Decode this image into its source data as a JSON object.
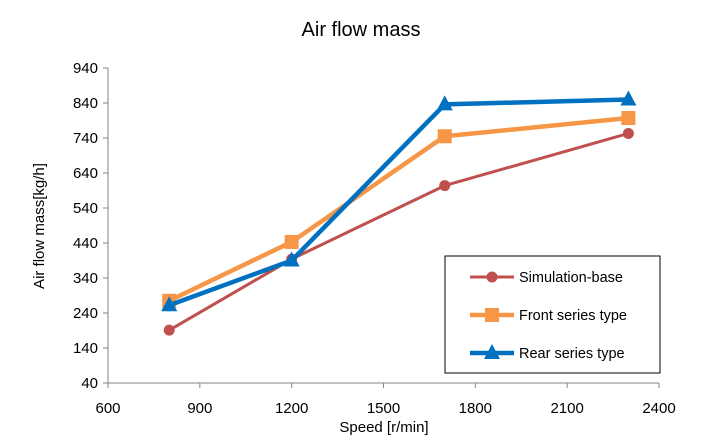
{
  "chart_data": {
    "type": "line",
    "title": "Air flow mass",
    "xlabel": "Speed [r/min]",
    "ylabel": "Air flow mass[kg/h]",
    "xlim": [
      600,
      2400
    ],
    "ylim": [
      40,
      940
    ],
    "xticks": [
      600,
      900,
      1200,
      1500,
      1800,
      2100,
      2400
    ],
    "yticks": [
      40,
      140,
      240,
      340,
      440,
      540,
      640,
      740,
      840,
      940
    ],
    "grid": false,
    "legend_position": "bottom-right",
    "series": [
      {
        "name": "Simulation-base",
        "color": "#c0504d",
        "marker": "circle",
        "x": [
          800,
          1200,
          1700,
          2300
        ],
        "y": [
          191,
          394,
          604,
          753
        ]
      },
      {
        "name": "Front series type",
        "color": "#f79646",
        "marker": "square",
        "x": [
          800,
          1200,
          1700,
          2300
        ],
        "y": [
          275,
          443,
          745,
          797
        ]
      },
      {
        "name": "Rear series type",
        "color": "#0070c0",
        "marker": "triangle",
        "x": [
          800,
          1200,
          1700,
          2300
        ],
        "y": [
          262,
          390,
          836,
          850
        ]
      }
    ]
  }
}
